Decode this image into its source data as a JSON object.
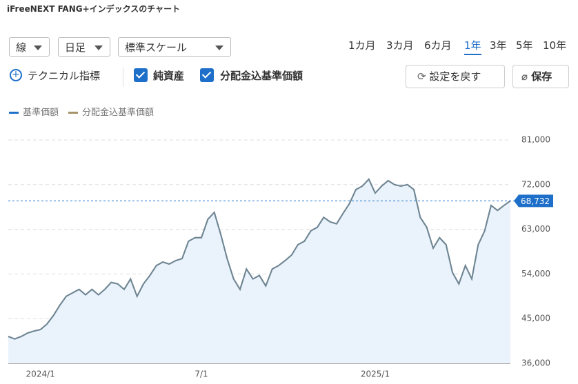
{
  "header": {
    "title": "iFreeNEXT FANG+インデックスのチャート"
  },
  "controls": {
    "dropdowns": [
      "線",
      "日足",
      "標準スケール"
    ],
    "ranges": [
      "1カ月",
      "3カ月",
      "6カ月",
      "1年",
      "3年",
      "5年",
      "10年"
    ],
    "selected_range": "1年",
    "technical": "テクニカル指標",
    "checkboxes": [
      "純資産",
      "分配金込基準価額"
    ],
    "reset": "設定を戻す",
    "save": "保存"
  },
  "chart_data": {
    "type": "line",
    "categories": [
      null,
      null,
      null,
      null,
      null,
      "2024/1",
      null,
      null,
      null,
      null,
      null,
      null,
      null,
      null,
      null,
      null,
      null,
      null,
      null,
      null,
      null,
      null,
      null,
      null,
      null,
      null,
      null,
      null,
      null,
      null,
      "7/1",
      null,
      null,
      null,
      null,
      null,
      null,
      null,
      null,
      null,
      null,
      null,
      null,
      null,
      null,
      null,
      null,
      null,
      null,
      null,
      null,
      null,
      null,
      null,
      null,
      null,
      null,
      "2025/1",
      null,
      null,
      null,
      null,
      null,
      null,
      null,
      null,
      null,
      null,
      null,
      null,
      null,
      null,
      null,
      null,
      null,
      null,
      null,
      null,
      null
    ],
    "series": [
      {
        "name": "基準価額",
        "color": "#1e6fc9",
        "values": [
          41400,
          40900,
          41400,
          42100,
          42500,
          42800,
          43900,
          45600,
          47700,
          49500,
          50200,
          50900,
          49800,
          50900,
          49800,
          50900,
          52300,
          52000,
          50900,
          53000,
          49500,
          52000,
          53700,
          55700,
          56400,
          56000,
          56700,
          57100,
          60600,
          61300,
          61300,
          65000,
          66400,
          62000,
          57100,
          53000,
          50900,
          55000,
          53000,
          53700,
          51600,
          55000,
          55700,
          56700,
          57800,
          59900,
          60600,
          62700,
          63400,
          65400,
          64500,
          64100,
          66200,
          68200,
          71000,
          71700,
          73100,
          70300,
          71700,
          72800,
          72000,
          71700,
          72000,
          71000,
          65400,
          63400,
          59200,
          61300,
          59900,
          54300,
          52000,
          55700,
          53000,
          59900,
          62700,
          67800,
          66800,
          67800,
          68732
        ]
      },
      {
        "name": "分配金込基準価額",
        "color": "#a8946a",
        "values": [
          41400,
          40900,
          41400,
          42100,
          42500,
          42800,
          43900,
          45600,
          47700,
          49500,
          50200,
          50900,
          49800,
          50900,
          49800,
          50900,
          52300,
          52000,
          50900,
          53000,
          49500,
          52000,
          53700,
          55700,
          56400,
          56000,
          56700,
          57100,
          60600,
          61300,
          61300,
          65000,
          66400,
          62000,
          57100,
          53000,
          50900,
          55000,
          53000,
          53700,
          51600,
          55000,
          55700,
          56700,
          57800,
          59900,
          60600,
          62700,
          63400,
          65400,
          64500,
          64100,
          66200,
          68200,
          71000,
          71700,
          73100,
          70300,
          71700,
          72800,
          72000,
          71700,
          72000,
          71000,
          65400,
          63400,
          59200,
          61300,
          59900,
          54300,
          52000,
          55700,
          53000,
          59900,
          62700,
          67800,
          66800,
          67800,
          68732
        ]
      }
    ],
    "ylim": [
      36000,
      81000
    ],
    "yticks": [
      {
        "value": 36000,
        "label": "36,000"
      },
      {
        "value": 45000,
        "label": "45,000"
      },
      {
        "value": 54000,
        "label": "54,000"
      },
      {
        "value": 63000,
        "label": "63,000"
      },
      {
        "value": 72000,
        "label": "72,000"
      },
      {
        "value": 81000,
        "label": "81,000"
      }
    ],
    "grid": true,
    "reference_line": {
      "value": 68732,
      "label": "68,732"
    }
  }
}
